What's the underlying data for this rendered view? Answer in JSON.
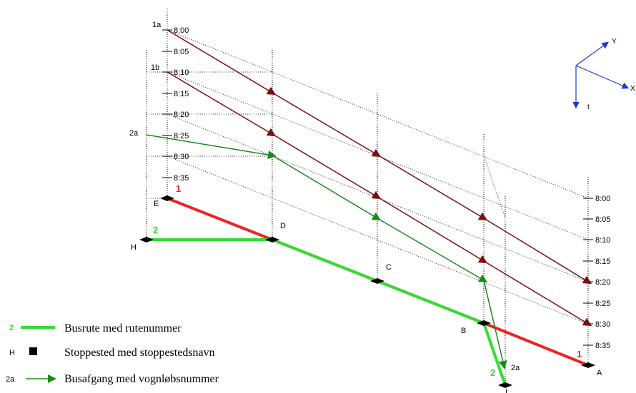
{
  "top_axis": {
    "ticks": [
      "8:00",
      "8:05",
      "8:10",
      "8:15",
      "8:20",
      "8:25",
      "8:30",
      "8:35"
    ]
  },
  "right_axis": {
    "ticks": [
      "8:00",
      "8:05",
      "8:10",
      "8:15",
      "8:20",
      "8:25",
      "8:30",
      "8:35"
    ]
  },
  "departures": {
    "d1a": "1a",
    "d1b": "1b",
    "d2a_start": "2a",
    "d2a_end": "2a"
  },
  "routes": {
    "r1_start": "1",
    "r1_end": "1",
    "r2_start": "2",
    "r2_end": "2"
  },
  "stops": {
    "A": "A",
    "B": "B",
    "C": "C",
    "D": "D",
    "E": "E",
    "H": "H",
    "I": "I"
  },
  "axes_key": {
    "y": "Y",
    "x": "X",
    "t": "t"
  },
  "legend": {
    "route_symbol": "2",
    "route_text": "Busrute med rutenummer",
    "stop_symbol": "H",
    "stop_text": "Stoppested med stoppestedsnavn",
    "departure_symbol": "2a",
    "departure_text": "Busafgang med vognløbsnummer"
  },
  "colors": {
    "route_red": "#ee2222",
    "route_green": "#33dd33",
    "departure_brown": "#7a1010",
    "departure_green": "#1a8a1a",
    "axis_blue": "#1a3ad0"
  }
}
